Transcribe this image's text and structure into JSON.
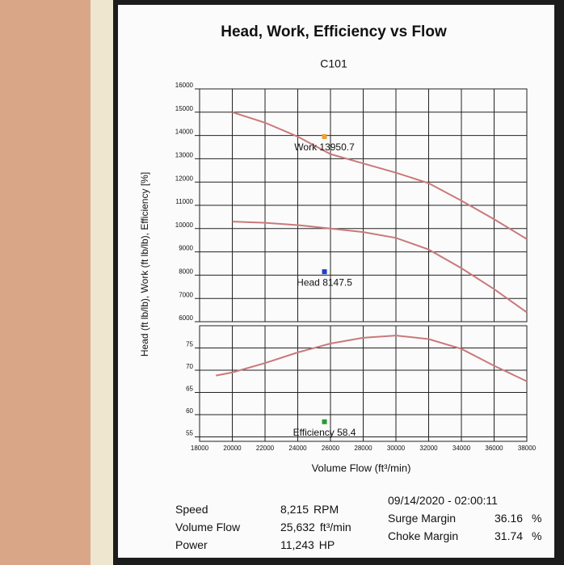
{
  "chart_data": [
    {
      "type": "line",
      "title": "Head, Work, Efficiency vs Flow",
      "subtitle": "C101",
      "ylabel": "Head (ft lb/lb), Work (ft lb/lb), Efficiency [%]",
      "xlim": [
        18000,
        38000
      ],
      "ylim": [
        6000,
        16000
      ],
      "yticks": [
        6000,
        7000,
        8000,
        9000,
        10000,
        11000,
        12000,
        13000,
        14000,
        15000,
        16000
      ],
      "grid": true,
      "series": [
        {
          "color": "#c9797c",
          "x": [
            20000,
            22000,
            24000,
            26000,
            28000,
            30000,
            32000,
            34000,
            36000,
            38000
          ],
          "values": [
            15000,
            14550,
            13950,
            13200,
            12800,
            12400,
            11950,
            11200,
            10400,
            9550
          ]
        },
        {
          "color": "#c9797c",
          "x": [
            20000,
            22000,
            24000,
            26000,
            28000,
            30000,
            32000,
            34000,
            36000,
            38000
          ],
          "values": [
            10300,
            10250,
            10150,
            10000,
            9850,
            9600,
            9100,
            8300,
            7400,
            6400
          ]
        }
      ],
      "annotations": [
        {
          "text": "Work 13950.7",
          "x": 25632,
          "y": 13950.7,
          "color": "#f0a030"
        },
        {
          "text": "Head 8147.5",
          "x": 25632,
          "y": 8147.5,
          "color": "#1f3fd0"
        }
      ]
    },
    {
      "type": "line",
      "xlabel": "Volume Flow (ft³/min)",
      "xlim": [
        18000,
        38000
      ],
      "ylim": [
        54,
        80
      ],
      "xticks": [
        18000,
        20000,
        22000,
        24000,
        26000,
        28000,
        30000,
        32000,
        34000,
        36000,
        38000
      ],
      "yticks": [
        55,
        60,
        65,
        70,
        75
      ],
      "grid": true,
      "series": [
        {
          "color": "#c9797c",
          "x": [
            19000,
            20000,
            22000,
            24000,
            26000,
            28000,
            30000,
            32000,
            34000,
            36000,
            38000
          ],
          "values": [
            68.8,
            69.5,
            71.6,
            74,
            76,
            77.3,
            77.8,
            77,
            74.8,
            71,
            67.5
          ]
        }
      ],
      "annotations": [
        {
          "text": "Efficiency 58.4",
          "x": 25632,
          "y": 58.4,
          "color": "#2a9a3a"
        }
      ]
    }
  ],
  "stats": {
    "left": [
      {
        "label": "Speed",
        "value": "8,215",
        "unit": "RPM"
      },
      {
        "label": "Volume Flow",
        "value": "25,632",
        "unit": "ft³/min"
      },
      {
        "label": "Power",
        "value": "11,243",
        "unit": "HP"
      }
    ],
    "timestamp": "09/14/2020 - 02:00:11",
    "right": [
      {
        "label": "Surge Margin",
        "value": "36.16",
        "unit": "%"
      },
      {
        "label": "Choke Margin",
        "value": "31.74",
        "unit": "%"
      }
    ]
  }
}
